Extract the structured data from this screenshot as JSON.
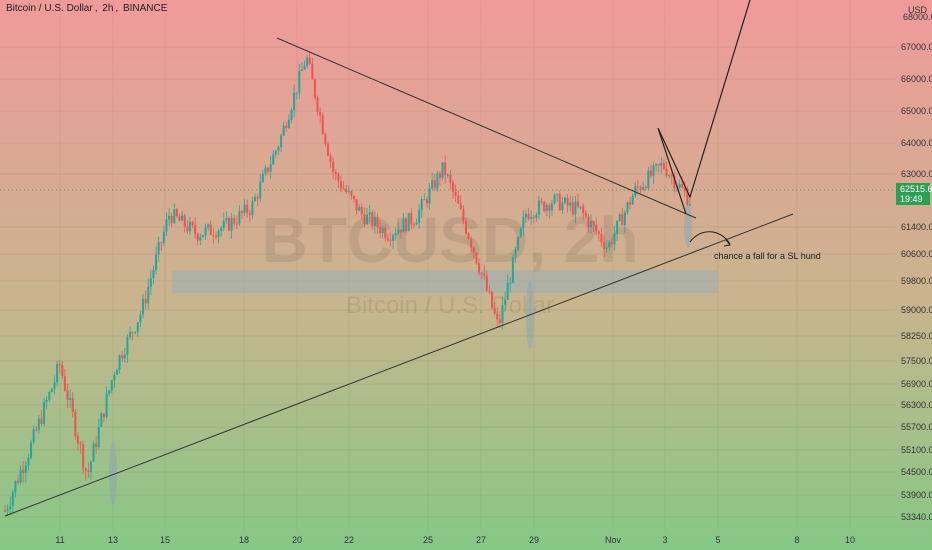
{
  "header": {
    "symbol_name": "Bitcoin / U.S. Dollar",
    "interval": "2h",
    "exchange": "BINANCE",
    "separator": ","
  },
  "currency": "USD",
  "watermark": {
    "symbol": "BTCUSD, 2h",
    "name": "Bitcoin / U.S. Dollar"
  },
  "last_price": {
    "value": "62515.66",
    "countdown": "19:49"
  },
  "annotation": "chance a fall for a SL hund",
  "colors": {
    "up": "#26a69a",
    "down": "#ef5350",
    "last_price_bg": "#2e9e54",
    "bg_top": "#f09a9a",
    "bg_bottom": "#86c886"
  },
  "chart_data": {
    "type": "candlestick",
    "title": "Bitcoin / U.S. Dollar, 2h, BINANCE",
    "y_axis_labels": [
      "67000.00",
      "66000.00",
      "65000.00",
      "64000.00",
      "63000.00",
      "61400.00",
      "60600.00",
      "59800.00",
      "59000.00",
      "58250.00",
      "57500.00",
      "56900.00",
      "56300.00",
      "55700.00",
      "55100.00",
      "54500.00",
      "53900.00",
      "53340.00"
    ],
    "y_axis_values": [
      67000,
      66000,
      65000,
      64000,
      63000,
      61400,
      60600,
      59800,
      59000,
      58250,
      57500,
      56900,
      56300,
      55700,
      55100,
      54500,
      53900,
      53340
    ],
    "x_axis_labels": [
      "11",
      "13",
      "15",
      "18",
      "20",
      "22",
      "25",
      "27",
      "29",
      "Nov",
      "3",
      "5",
      "8",
      "10"
    ],
    "top_partial_label": "68000.00",
    "price_path": [
      [
        "Oct 10",
        53500
      ],
      [
        "Oct 11",
        55300
      ],
      [
        "Oct 12",
        57400
      ],
      [
        "Oct 13",
        54400
      ],
      [
        "Oct 14",
        57300
      ],
      [
        "Oct 15",
        59000
      ],
      [
        "Oct 16",
        61800
      ],
      [
        "Oct 17",
        61200
      ],
      [
        "Oct 18",
        61400
      ],
      [
        "Oct 19",
        62000
      ],
      [
        "Oct 20",
        64000
      ],
      [
        "Oct 21",
        66700
      ],
      [
        "Oct 22",
        63000
      ],
      [
        "Oct 23",
        61800
      ],
      [
        "Oct 24",
        61200
      ],
      [
        "Oct 25",
        61700
      ],
      [
        "Oct 26",
        63200
      ],
      [
        "Oct 27",
        61000
      ],
      [
        "Oct 28",
        58500
      ],
      [
        "Oct 29",
        61800
      ],
      [
        "Oct 30",
        62200
      ],
      [
        "Oct 31",
        61900
      ],
      [
        "Nov 1",
        60800
      ],
      [
        "Nov 2",
        62500
      ],
      [
        "Nov 3",
        63300
      ],
      [
        "Nov 4",
        62200
      ]
    ],
    "drawings": {
      "descending_trendline": "from ~Oct 19 at ~67300 to ~Nov 4 at ~61900",
      "ascending_trendline": "from ~Oct 10 at ~53300 to ~Nov 7 at ~62000",
      "support_zone": "~59500 to ~60300",
      "projection_path": "Nov 2 low → Nov 3 high ~64500 → Nov 4 ~62000 → rising above 68000"
    }
  }
}
